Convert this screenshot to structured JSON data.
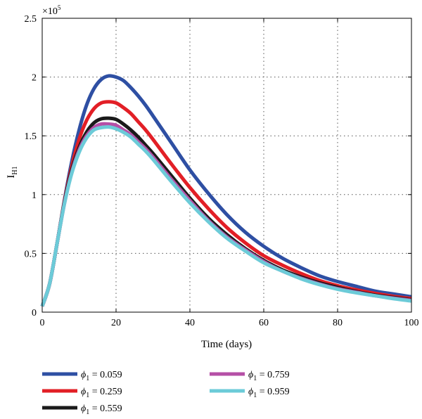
{
  "chart_data": {
    "type": "line",
    "title": "",
    "xlabel": "Time (days)",
    "ylabel": "I",
    "ylabel_sub": "H1",
    "y_multiplier": "×10",
    "y_multiplier_exp": "5",
    "xlim": [
      0,
      100
    ],
    "ylim": [
      0,
      2.5
    ],
    "xticks": [
      0,
      20,
      40,
      60,
      80,
      100
    ],
    "yticks": [
      0,
      0.5,
      1,
      1.5,
      2,
      2.5
    ],
    "xtick_labels": [
      "0",
      "20",
      "40",
      "60",
      "80",
      "100"
    ],
    "ytick_labels": [
      "0",
      "0.5",
      "1",
      "1.5",
      "2",
      "2.5"
    ],
    "grid": true,
    "legend_position": "bottom",
    "x": [
      0,
      2,
      4,
      6,
      8,
      10,
      12,
      14,
      16,
      18,
      20,
      22,
      24,
      26,
      28,
      30,
      35,
      40,
      45,
      50,
      55,
      60,
      65,
      70,
      75,
      80,
      85,
      90,
      95,
      100
    ],
    "series": [
      {
        "name": "ϕ",
        "name_sub": "1",
        "name_value": "= 0.059",
        "color": "#2e4fa3",
        "values": [
          0.05,
          0.24,
          0.58,
          0.95,
          1.28,
          1.55,
          1.76,
          1.9,
          1.98,
          2.01,
          2.0,
          1.97,
          1.91,
          1.84,
          1.76,
          1.67,
          1.44,
          1.21,
          1.01,
          0.83,
          0.68,
          0.56,
          0.46,
          0.38,
          0.31,
          0.26,
          0.22,
          0.18,
          0.155,
          0.13
        ]
      },
      {
        "name": "ϕ",
        "name_sub": "1",
        "name_value": "= 0.259",
        "color": "#e21f26",
        "values": [
          0.05,
          0.24,
          0.58,
          0.94,
          1.24,
          1.47,
          1.63,
          1.73,
          1.78,
          1.79,
          1.78,
          1.74,
          1.69,
          1.62,
          1.55,
          1.47,
          1.26,
          1.06,
          0.88,
          0.72,
          0.59,
          0.48,
          0.4,
          0.33,
          0.27,
          0.225,
          0.19,
          0.16,
          0.135,
          0.115
        ]
      },
      {
        "name": "ϕ",
        "name_sub": "1",
        "name_value": "= 0.559",
        "color": "#1a1a1a",
        "values": [
          0.05,
          0.24,
          0.58,
          0.93,
          1.21,
          1.4,
          1.53,
          1.61,
          1.645,
          1.65,
          1.64,
          1.6,
          1.55,
          1.49,
          1.42,
          1.35,
          1.16,
          0.97,
          0.8,
          0.66,
          0.54,
          0.44,
          0.36,
          0.3,
          0.25,
          0.21,
          0.175,
          0.145,
          0.125,
          0.105
        ]
      },
      {
        "name": "ϕ",
        "name_sub": "1",
        "name_value": "= 0.759",
        "color": "#b54fa6",
        "values": [
          0.05,
          0.24,
          0.58,
          0.92,
          1.19,
          1.38,
          1.5,
          1.57,
          1.6,
          1.6,
          1.59,
          1.55,
          1.51,
          1.45,
          1.39,
          1.32,
          1.13,
          0.95,
          0.78,
          0.64,
          0.53,
          0.43,
          0.35,
          0.29,
          0.24,
          0.2,
          0.17,
          0.14,
          0.12,
          0.1
        ]
      },
      {
        "name": "ϕ",
        "name_sub": "1",
        "name_value": "= 0.959",
        "color": "#6ccbd8",
        "values": [
          0.05,
          0.24,
          0.58,
          0.92,
          1.18,
          1.36,
          1.48,
          1.55,
          1.57,
          1.575,
          1.56,
          1.53,
          1.49,
          1.43,
          1.37,
          1.3,
          1.11,
          0.93,
          0.77,
          0.63,
          0.52,
          0.42,
          0.35,
          0.285,
          0.235,
          0.195,
          0.165,
          0.14,
          0.115,
          0.095
        ]
      }
    ]
  }
}
